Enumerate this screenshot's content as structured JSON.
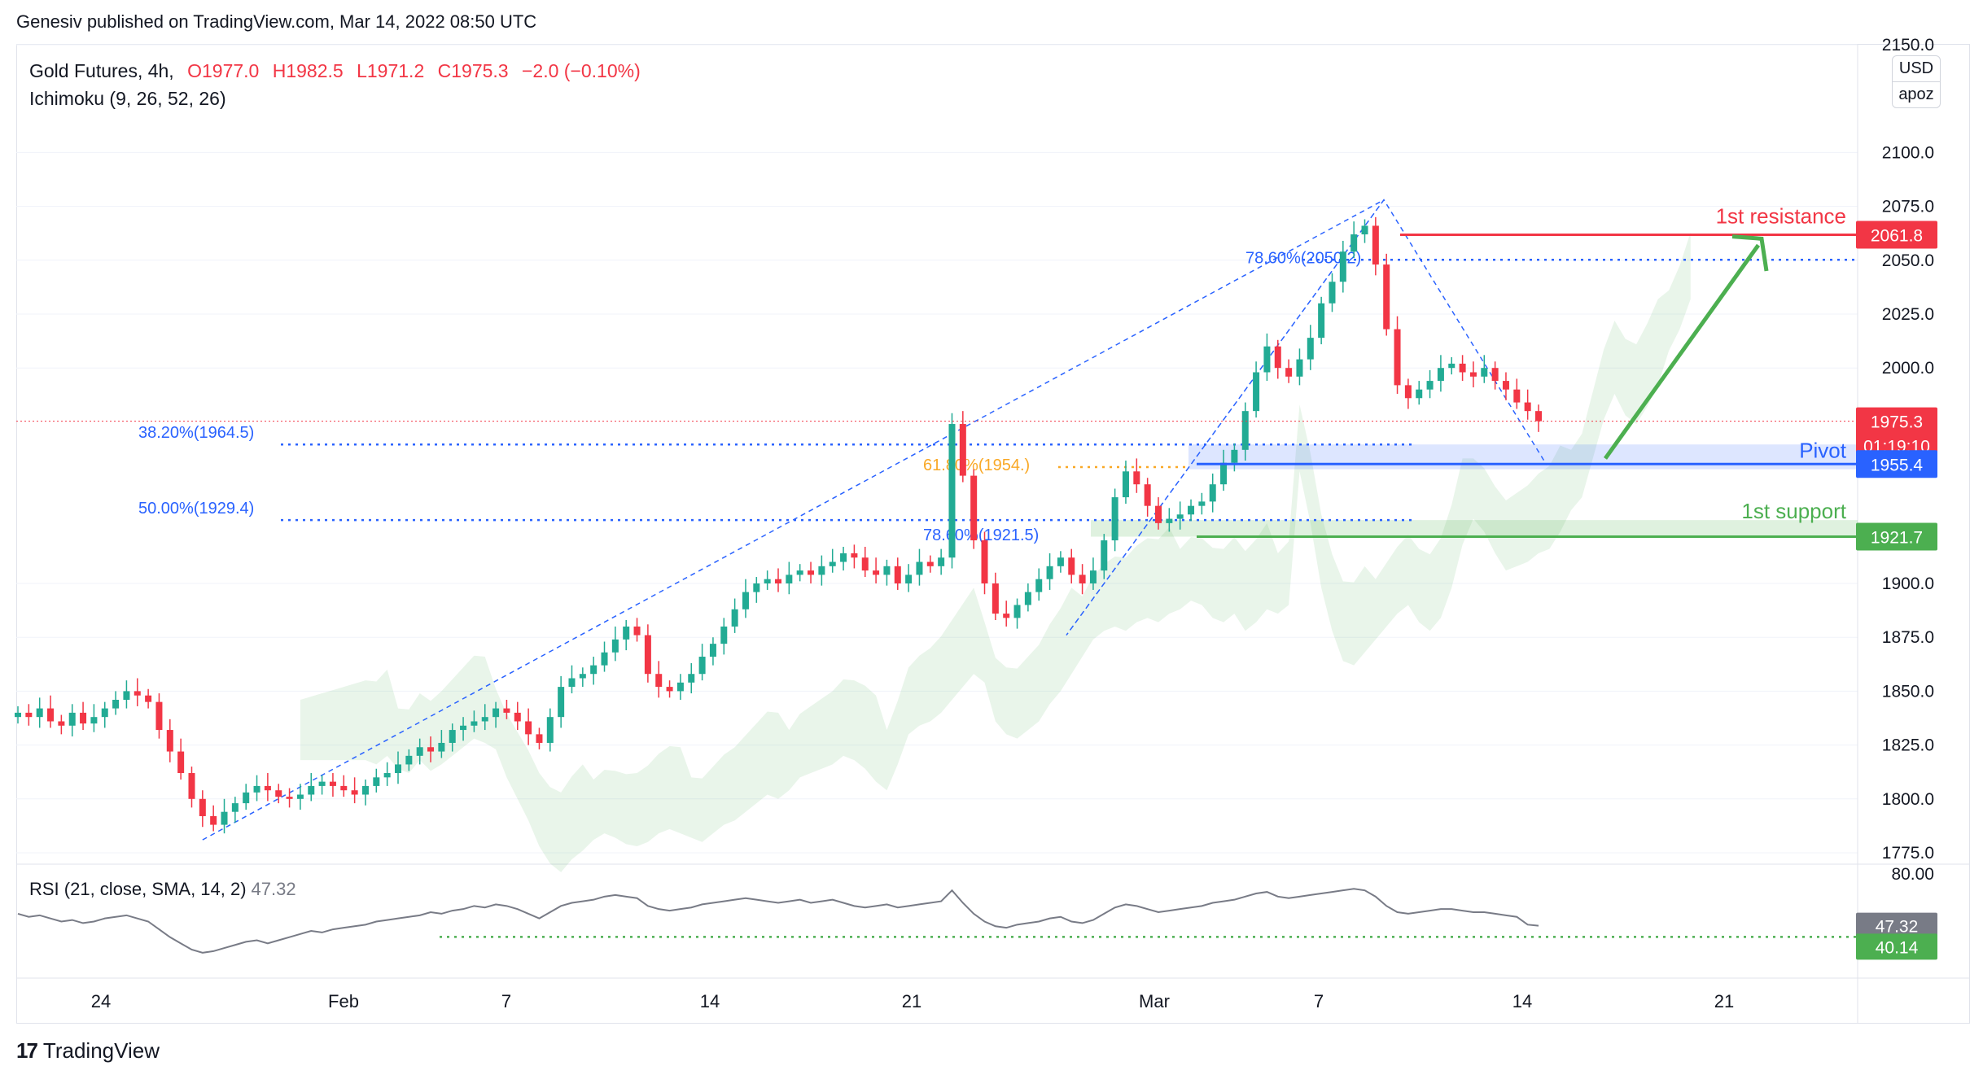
{
  "header": {
    "publisher": "Genesiv published on TradingView.com, Mar 14, 2022 08:50 UTC"
  },
  "legend": {
    "symbol": "Gold Futures, 4h,",
    "open": "O1977.0",
    "high": "H1982.5",
    "low": "L1971.2",
    "close": "C1975.3",
    "change": "−2.0 (−0.10%)",
    "indicator": "Ichimoku (9, 26, 52, 26)"
  },
  "rsi_legend": {
    "label": "RSI (21, close, SMA, 14, 2)",
    "value": "47.32"
  },
  "currency": {
    "currency_label": "USD",
    "scale_label": "apoz"
  },
  "footer": {
    "brand": "TradingView"
  },
  "colors": {
    "up": "#22ab94",
    "down": "#f23645",
    "fib": "#2962ff",
    "resistance": "#f23645",
    "support": "#4caf50",
    "arrow": "#4caf50",
    "rsi": "#787b86"
  },
  "chart_data": [
    {
      "type": "candlestick",
      "title": "Gold Futures, 4h",
      "ylim": [
        1770,
        2155
      ],
      "y_ticks": [
        2150,
        2100,
        2075,
        2050,
        2025,
        2000,
        1900,
        1875,
        1850,
        1825,
        1800,
        1775
      ],
      "y_tick_labels": [
        "2150.0",
        "2100.0",
        "2075.0",
        "2050.0",
        "2025.0",
        "2000.0",
        "1900.0",
        "1875.0",
        "1850.0",
        "1825.0",
        "1800.0",
        "1775.0"
      ],
      "x_tick_labels": [
        "24",
        "Feb",
        "7",
        "14",
        "21",
        "Mar",
        "7",
        "14",
        "21"
      ],
      "price_labels": {
        "resistance": "2061.8",
        "last": "1975.3",
        "countdown": "01:19:10",
        "pivot": "1955.4",
        "support": "1921.7"
      },
      "levels": [
        {
          "name": "1st resistance",
          "value": 2061.8
        },
        {
          "name": "Pivot",
          "value": 1955.4
        },
        {
          "name": "1st support",
          "value": 1921.7
        }
      ],
      "fib_labels": [
        {
          "text": "38.20%(1964.5)",
          "value": 1964.5
        },
        {
          "text": "50.00%(1929.4)",
          "value": 1929.4
        },
        {
          "text": "78.60%(2050.2)",
          "value": 2050.2
        },
        {
          "text": "61.80%(1954.)",
          "value": 1954.0
        },
        {
          "text": "78.60%(1921.5)",
          "value": 1921.5
        }
      ],
      "close_series": [
        1840,
        1838,
        1842,
        1836,
        1834,
        1840,
        1835,
        1838,
        1842,
        1846,
        1850,
        1848,
        1845,
        1832,
        1822,
        1812,
        1800,
        1792,
        1788,
        1794,
        1798,
        1803,
        1806,
        1804,
        1801,
        1800,
        1802,
        1806,
        1808,
        1806,
        1804,
        1802,
        1806,
        1810,
        1812,
        1816,
        1820,
        1824,
        1822,
        1826,
        1832,
        1834,
        1836,
        1838,
        1842,
        1840,
        1836,
        1830,
        1826,
        1838,
        1852,
        1856,
        1858,
        1862,
        1868,
        1874,
        1880,
        1876,
        1858,
        1852,
        1850,
        1854,
        1858,
        1866,
        1872,
        1880,
        1888,
        1896,
        1900,
        1902,
        1900,
        1904,
        1906,
        1904,
        1908,
        1910,
        1914,
        1912,
        1906,
        1904,
        1908,
        1900,
        1904,
        1910,
        1908,
        1912,
        1974,
        1950,
        1920,
        1900,
        1886,
        1884,
        1890,
        1896,
        1902,
        1908,
        1912,
        1904,
        1900,
        1906,
        1920,
        1940,
        1952,
        1946,
        1936,
        1928,
        1930,
        1932,
        1936,
        1938,
        1946,
        1956,
        1962,
        1980,
        1998,
        2010,
        2000,
        1996,
        2004,
        2014,
        2030,
        2040,
        2054,
        2062,
        2066,
        2048,
        2018,
        1992,
        1986,
        1990,
        1994,
        2000,
        2002,
        1998,
        1996,
        2000,
        1994,
        1990,
        1984,
        1980,
        1975.3
      ],
      "rsi": {
        "ylim": [
          20,
          80
        ],
        "upper_label": "80.00",
        "value_label": "47.32",
        "sma_label": "40.14",
        "sma_value": 40.14,
        "values": [
          55,
          53,
          54,
          52,
          50,
          51,
          49,
          50,
          52,
          53,
          54,
          52,
          50,
          45,
          40,
          36,
          32,
          30,
          31,
          33,
          35,
          37,
          38,
          36,
          38,
          40,
          42,
          44,
          43,
          45,
          46,
          47,
          48,
          50,
          51,
          52,
          53,
          54,
          56,
          55,
          57,
          58,
          60,
          59,
          61,
          60,
          58,
          55,
          52,
          56,
          60,
          62,
          63,
          64,
          66,
          67,
          66,
          65,
          60,
          58,
          57,
          58,
          59,
          61,
          62,
          63,
          64,
          65,
          64,
          63,
          62,
          63,
          64,
          62,
          63,
          64,
          62,
          60,
          59,
          60,
          61,
          59,
          60,
          61,
          62,
          63,
          70,
          62,
          55,
          50,
          47,
          46,
          48,
          49,
          50,
          52,
          53,
          50,
          49,
          51,
          55,
          59,
          61,
          60,
          58,
          56,
          57,
          58,
          59,
          60,
          62,
          63,
          64,
          66,
          68,
          69,
          66,
          65,
          66,
          67,
          68,
          69,
          70,
          71,
          70,
          66,
          60,
          56,
          55,
          56,
          57,
          58,
          58,
          57,
          56,
          56,
          55,
          54,
          53,
          48,
          47.32
        ]
      }
    }
  ]
}
